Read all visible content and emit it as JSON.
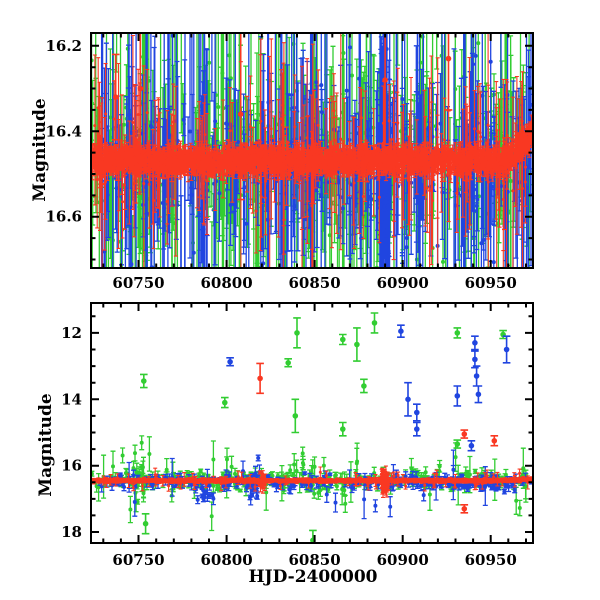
{
  "figure": {
    "description": "Two-panel light curve scatter plot with error bars",
    "background": "#ffffff",
    "frame_color": "#000000"
  },
  "chart_data": [
    {
      "id": "top-panel",
      "type": "scatter",
      "title": "",
      "xlabel": "",
      "ylabel": "Magnitude",
      "xlim": [
        60723,
        60974
      ],
      "ylim": [
        16.17,
        16.72
      ],
      "y_axis_inverted_magnitude": true,
      "grid": false,
      "legend": "none",
      "x_ticks": [
        60750,
        60800,
        60850,
        60900,
        60950
      ],
      "x_tick_labels": [
        "60750",
        "60800",
        "60850",
        "60900",
        "60950"
      ],
      "x_minor_step": 10,
      "y_ticks": [
        16.2,
        16.4,
        16.6
      ],
      "y_tick_labels": [
        "16.2",
        "16.4",
        "16.6"
      ],
      "y_minor_step": 0.05,
      "series": [
        {
          "name": "green",
          "color": "#32cd32",
          "seed": 11,
          "band": {
            "n": 430,
            "x0": 60723,
            "x1": 60974,
            "mean": 16.47,
            "sigma": 0.055,
            "err0": 0.03,
            "err1": 0.18,
            "bigfrac": 0.3
          },
          "clusters": [
            {
              "x": 60748,
              "dx": 8,
              "n": 16,
              "mean": 16.47,
              "sigma": 0.07,
              "err0": 0.04,
              "err1": 0.15
            }
          ],
          "outliers": []
        },
        {
          "name": "blue",
          "color": "#2045e0",
          "seed": 22,
          "band": {
            "n": 380,
            "x0": 60727,
            "x1": 60974,
            "mean": 16.48,
            "sigma": 0.05,
            "err0": 0.03,
            "err1": 0.2,
            "bigfrac": 0.3
          },
          "clusters": [
            {
              "x": 60890,
              "dx": 3,
              "n": 55,
              "mean": 16.5,
              "sigma": 0.09,
              "err0": 0.05,
              "err1": 0.3
            }
          ],
          "outliers": []
        },
        {
          "name": "red",
          "color": "#f93822",
          "seed": 33,
          "band": {
            "n": 2300,
            "x0": 60723,
            "x1": 60974,
            "mean": 16.468,
            "sigma": 0.013,
            "err0": 0.008,
            "err1": 0.025,
            "bigfrac": 0.04,
            "hook": {
              "x0": 60958,
              "rate": 0.004
            }
          },
          "clusters": [
            {
              "x": 60848,
              "dx": 125,
              "n": 70,
              "mean": 16.47,
              "sigma": 0.05,
              "err0": 0.06,
              "err1": 0.28
            }
          ],
          "outliers": [
            [
              60737,
              16.32,
              0.1
            ],
            [
              60751,
              16.3,
              0.15
            ],
            [
              60808,
              16.36,
              0.2
            ],
            [
              60890,
              16.28,
              0.15
            ],
            [
              60926,
              16.23,
              0.12
            ]
          ]
        }
      ]
    },
    {
      "id": "bottom-panel",
      "type": "scatter",
      "title": "",
      "xlabel": "HJD-2400000",
      "ylabel": "Magnitude",
      "xlim": [
        60723,
        60974
      ],
      "ylim": [
        11.1,
        18.33
      ],
      "y_axis_inverted_magnitude": true,
      "grid": false,
      "legend": "none",
      "x_ticks": [
        60750,
        60800,
        60850,
        60900,
        60950
      ],
      "x_tick_labels": [
        "60750",
        "60800",
        "60850",
        "60900",
        "60950"
      ],
      "x_minor_step": 10,
      "y_ticks": [
        12,
        14,
        16,
        18
      ],
      "y_tick_labels": [
        "12",
        "14",
        "16",
        "18"
      ],
      "y_minor_step": 0.5,
      "series": [
        {
          "name": "green",
          "color": "#32cd32",
          "seed": 44,
          "band": {
            "n": 300,
            "x0": 60723,
            "x1": 60974,
            "mean": 16.45,
            "sigma": 0.13,
            "err0": 0.03,
            "err1": 0.2,
            "bigfrac": 0.15
          },
          "clusters": [
            {
              "x": 60750,
              "dx": 3,
              "n": 14,
              "mean": 16.55,
              "sigma": 0.38,
              "err0": 0.05,
              "err1": 0.3
            },
            {
              "x": 60852,
              "dx": 10,
              "n": 12,
              "mean": 16.3,
              "sigma": 0.3,
              "err0": 0.05,
              "err1": 0.25
            }
          ],
          "outliers": [
            [
              60753,
              13.45,
              0.2
            ],
            [
              60754,
              17.75,
              0.3
            ],
            [
              60799,
              14.1,
              0.15
            ],
            [
              60835,
              12.9,
              0.12
            ],
            [
              60840,
              12.0,
              0.45
            ],
            [
              60839,
              14.5,
              0.5
            ],
            [
              60849,
              18.25,
              0.3
            ],
            [
              60866,
              12.2,
              0.15
            ],
            [
              60866,
              14.9,
              0.2
            ],
            [
              60874,
              12.35,
              0.5
            ],
            [
              60878,
              13.6,
              0.2
            ],
            [
              60884,
              11.7,
              0.3
            ],
            [
              60931,
              12.0,
              0.15
            ],
            [
              60931,
              15.35,
              0.12
            ],
            [
              60957,
              12.05,
              0.12
            ]
          ]
        },
        {
          "name": "blue",
          "color": "#2045e0",
          "seed": 55,
          "band": {
            "n": 230,
            "x0": 60727,
            "x1": 60974,
            "mean": 16.5,
            "sigma": 0.09,
            "err0": 0.03,
            "err1": 0.18,
            "bigfrac": 0.12
          },
          "clusters": [
            {
              "x": 60816,
              "dx": 3,
              "n": 16,
              "mean": 16.45,
              "sigma": 0.35,
              "err0": 0.05,
              "err1": 0.25
            },
            {
              "x": 60787,
              "dx": 5,
              "n": 12,
              "mean": 16.8,
              "sigma": 0.2,
              "err0": 0.04,
              "err1": 0.15
            },
            {
              "x": 60945,
              "dx": 20,
              "n": 25,
              "mean": 16.6,
              "sigma": 0.12,
              "err0": 0.02,
              "err1": 0.08
            }
          ],
          "outliers": [
            [
              60802,
              12.87,
              0.12
            ],
            [
              60899,
              11.95,
              0.18
            ],
            [
              60903,
              14.0,
              0.5
            ],
            [
              60908,
              14.4,
              0.25
            ],
            [
              60908,
              14.9,
              0.2
            ],
            [
              60931,
              13.9,
              0.3
            ],
            [
              60939,
              15.4,
              0.15
            ],
            [
              60941,
              12.3,
              0.2
            ],
            [
              60941,
              12.8,
              0.25
            ],
            [
              60942,
              13.3,
              0.3
            ],
            [
              60943,
              13.85,
              0.25
            ],
            [
              60959,
              12.5,
              0.4
            ]
          ]
        },
        {
          "name": "red",
          "color": "#f93822",
          "seed": 66,
          "band": {
            "n": 1500,
            "x0": 60723,
            "x1": 60974,
            "mean": 16.45,
            "sigma": 0.022,
            "err0": 0.01,
            "err1": 0.05,
            "bigfrac": 0.05,
            "hook": {
              "x0": 60960,
              "rate": 0.003
            }
          },
          "clusters": [
            {
              "x": 60890,
              "dx": 2,
              "n": 70,
              "mean": 16.45,
              "sigma": 0.13,
              "err0": 0.03,
              "err1": 0.25
            },
            {
              "x": 60820,
              "dx": 2,
              "n": 14,
              "mean": 16.5,
              "sigma": 0.1,
              "err0": 0.04,
              "err1": 0.2
            }
          ],
          "outliers": [
            [
              60819,
              13.37,
              0.45
            ],
            [
              60935,
              15.05,
              0.12
            ],
            [
              60935,
              17.3,
              0.12
            ],
            [
              60952,
              15.25,
              0.15
            ]
          ]
        }
      ]
    }
  ]
}
